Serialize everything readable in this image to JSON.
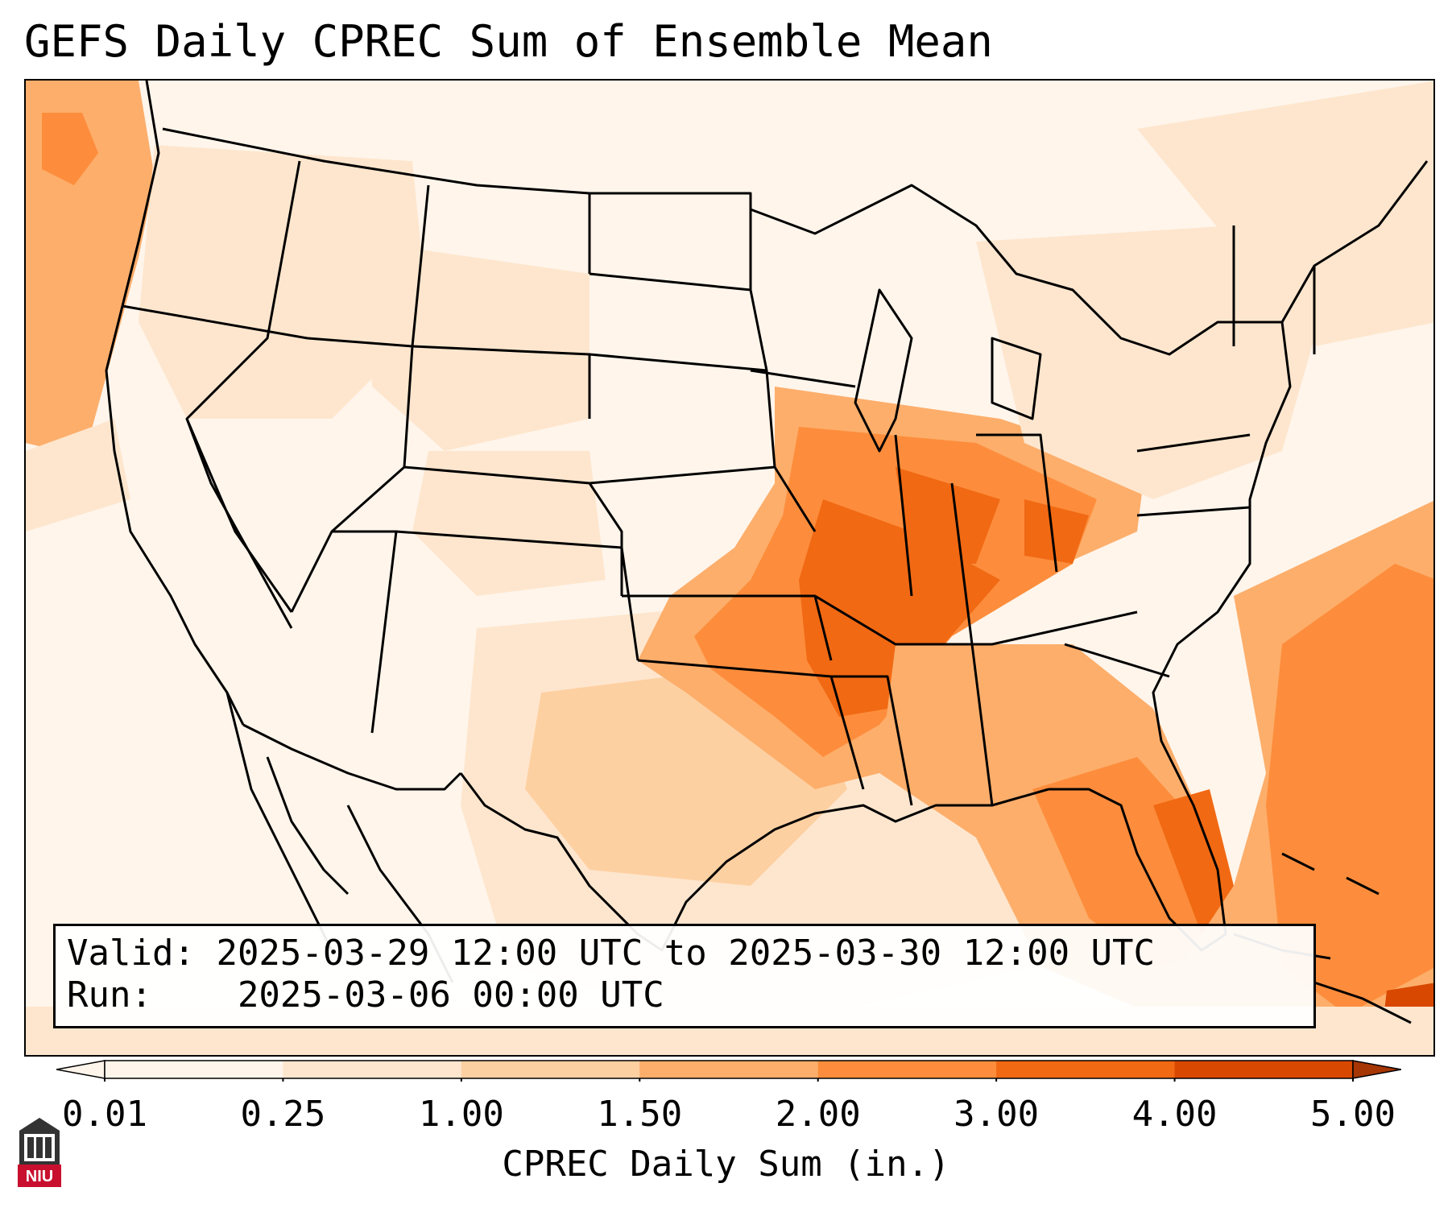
{
  "title": "GEFS Daily CPREC Sum of Ensemble Mean",
  "info": {
    "valid_label": "Valid:",
    "valid_value": "2025-03-29 12:00 UTC to 2025-03-30 12:00 UTC",
    "run_label": "Run:",
    "run_value": "2025-03-06 00:00 UTC"
  },
  "colorbar": {
    "label": "CPREC Daily Sum (in.)",
    "ticks": [
      "0.01",
      "0.25",
      "1.00",
      "1.50",
      "2.00",
      "3.00",
      "4.00",
      "5.00"
    ],
    "colors": [
      "#fff5eb",
      "#fee6ce",
      "#fdd0a2",
      "#fdae6b",
      "#fd8d3c",
      "#f16913",
      "#d94801",
      "#a63603"
    ],
    "extend": "both"
  },
  "logo": {
    "text": "NIU"
  },
  "map": {
    "region": "Continental United States",
    "precip_colors": [
      "#fff5eb",
      "#fee6ce",
      "#fdd0a2",
      "#fdae6b",
      "#fd8d3c",
      "#f16913",
      "#e05a0c"
    ]
  }
}
